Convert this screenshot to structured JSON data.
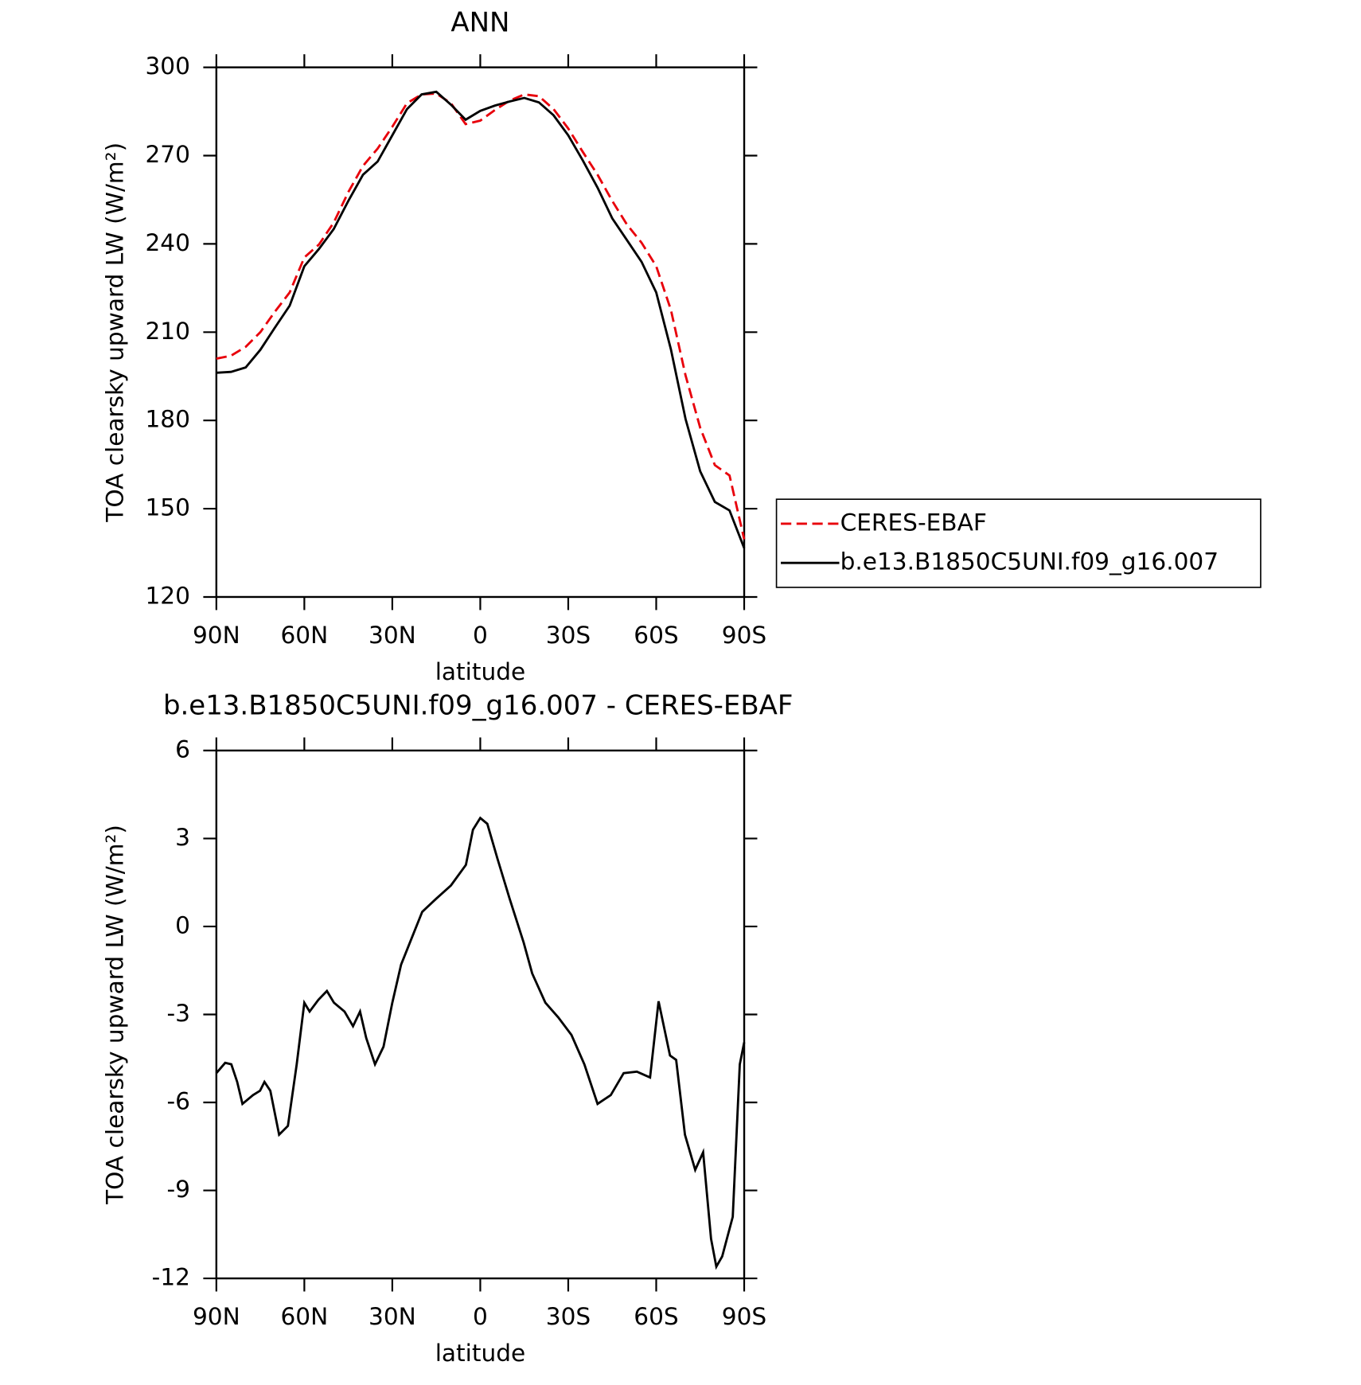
{
  "chart_data": [
    {
      "type": "line",
      "title": "ANN",
      "x_label": "latitude",
      "y_label": "TOA clearsky upward LW (W/m²)",
      "xlim": [
        90,
        -90
      ],
      "ylim": [
        120,
        300
      ],
      "xticks": [
        {
          "value": 90,
          "label": "90N"
        },
        {
          "value": 60,
          "label": "60N"
        },
        {
          "value": 30,
          "label": "30N"
        },
        0,
        {
          "value": -30,
          "label": "30S"
        },
        {
          "value": -60,
          "label": "60S"
        },
        {
          "value": -90,
          "label": "90S"
        }
      ],
      "yticks": [
        120,
        150,
        180,
        210,
        240,
        270,
        300
      ],
      "legend": "right",
      "x": [
        90,
        85,
        80,
        75,
        70,
        65,
        60,
        55,
        50,
        45,
        40,
        35,
        30,
        25,
        20,
        15,
        10,
        5,
        0,
        -5,
        -10,
        -15,
        -20,
        -25,
        -30,
        -35,
        -40,
        -45,
        -50,
        -55,
        -60,
        -65,
        -70,
        -75,
        -80,
        -85,
        -90
      ],
      "series": [
        {
          "name": "CERES-EBAF",
          "color": "#e8000b",
          "dash": true,
          "values": [
            201,
            202,
            205,
            210,
            217,
            223.5,
            235.4,
            239.8,
            247.2,
            257.6,
            266.5,
            272.4,
            279.8,
            287.8,
            290.8,
            291.1,
            287.8,
            280.7,
            281.9,
            285.5,
            288.7,
            290.8,
            290.2,
            285.8,
            279.2,
            271.2,
            263.5,
            254.6,
            246.6,
            240.4,
            232.4,
            217.6,
            195.3,
            177.5,
            164.8,
            161.3,
            139.6
          ]
        },
        {
          "name": "b.e13.B1850C5UNI.f09_g16.007",
          "color": "#000000",
          "dash": false,
          "values": [
            196.2,
            196.5,
            198,
            204,
            211.6,
            219,
            232.4,
            238.3,
            245,
            254.6,
            263.5,
            268,
            276.9,
            285.8,
            290.8,
            291.7,
            287.3,
            282.2,
            285.2,
            287,
            288.4,
            289.6,
            288.1,
            283.7,
            276.9,
            268.3,
            259.1,
            248.7,
            241.3,
            233.9,
            223.5,
            204.2,
            180.5,
            162.7,
            152.3,
            149.4,
            136.6
          ]
        }
      ]
    },
    {
      "type": "line",
      "title": "b.e13.B1850C5UNI.f09_g16.007 - CERES-EBAF",
      "x_label": "latitude",
      "y_label": "TOA clearsky upward LW (W/m²)",
      "xlim": [
        90,
        -90
      ],
      "ylim": [
        -12,
        6
      ],
      "xticks": [
        {
          "value": 90,
          "label": "90N"
        },
        {
          "value": 60,
          "label": "60N"
        },
        {
          "value": 30,
          "label": "30N"
        },
        0,
        {
          "value": -30,
          "label": "30S"
        },
        {
          "value": -60,
          "label": "60S"
        },
        {
          "value": -90,
          "label": "90S"
        }
      ],
      "yticks": [
        -12,
        -9,
        -6,
        -3,
        0,
        3,
        6
      ],
      "x": [
        90,
        87,
        84.9,
        82.9,
        81.1,
        77.5,
        75.1,
        73.6,
        71.6,
        68.6,
        65.6,
        62.6,
        60,
        58.2,
        55.2,
        52.3,
        49.9,
        46.3,
        43.4,
        41,
        38.9,
        35.9,
        33,
        30,
        27,
        24,
        19.8,
        15,
        10,
        4.9,
        2.5,
        0,
        -2.4,
        -5.9,
        -10,
        -14.8,
        -17.7,
        -22.2,
        -26.6,
        -31.1,
        -35.5,
        -40,
        -44.5,
        -48.9,
        -53.4,
        -57.9,
        -60.8,
        -64.7,
        -66.8,
        -69.8,
        -73.3,
        -76,
        -78.7,
        -80.5,
        -82.5,
        -86.1,
        -88.5,
        -90
      ],
      "series": [
        {
          "color": "#000000",
          "values": [
            -5.0,
            -4.65,
            -4.7,
            -5.3,
            -6.05,
            -5.75,
            -5.6,
            -5.3,
            -5.6,
            -7.1,
            -6.8,
            -4.7,
            -2.6,
            -2.9,
            -2.5,
            -2.2,
            -2.6,
            -2.9,
            -3.4,
            -2.9,
            -3.8,
            -4.7,
            -4.1,
            -2.6,
            -1.3,
            -0.55,
            0.5,
            0.95,
            1.4,
            2.1,
            3.3,
            3.7,
            3.5,
            2.3,
            0.95,
            -0.55,
            -1.6,
            -2.6,
            -3.1,
            -3.7,
            -4.7,
            -6.05,
            -5.75,
            -5.0,
            -4.95,
            -5.15,
            -2.55,
            -4.4,
            -4.55,
            -7.1,
            -8.3,
            -7.7,
            -10.65,
            -11.6,
            -11.25,
            -9.9,
            -4.7,
            -3.95
          ]
        }
      ]
    }
  ]
}
